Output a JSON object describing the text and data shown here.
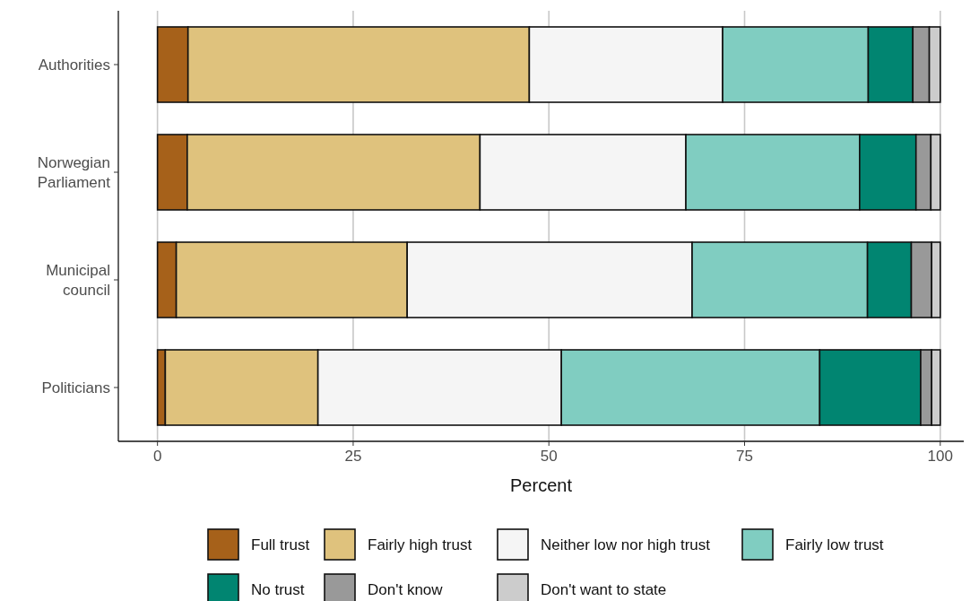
{
  "chart_data": {
    "type": "bar",
    "orientation": "horizontal",
    "stacked": true,
    "xlabel": "Percent",
    "categories": [
      "Authorities",
      "Norwegian\nParliament",
      "Municipal\ncouncil",
      "Politicians"
    ],
    "series": [
      {
        "name": "Full trust",
        "color": "#a6611a",
        "values": [
          3.9,
          3.8,
          2.4,
          1.0
        ]
      },
      {
        "name": "Fairly high trust",
        "color": "#dfc27d",
        "values": [
          43.6,
          37.4,
          29.5,
          19.5
        ]
      },
      {
        "name": "Neither low nor high trust",
        "color": "#f5f5f5",
        "values": [
          24.7,
          26.3,
          36.4,
          31.1
        ]
      },
      {
        "name": "Fairly low trust",
        "color": "#80cdc1",
        "values": [
          18.6,
          22.2,
          22.4,
          33.0
        ]
      },
      {
        "name": "No trust",
        "color": "#018571",
        "values": [
          5.7,
          7.2,
          5.6,
          12.9
        ]
      },
      {
        "name": "Don't know",
        "color": "#999999",
        "values": [
          2.1,
          1.9,
          2.6,
          1.4
        ]
      },
      {
        "name": "Don't want to state",
        "color": "#cccccc",
        "values": [
          1.4,
          1.2,
          1.1,
          1.1
        ]
      }
    ],
    "xlim": [
      -5,
      103
    ],
    "xticks": [
      0,
      25,
      50,
      75,
      100
    ],
    "grid": "x",
    "legend": "bottom"
  }
}
